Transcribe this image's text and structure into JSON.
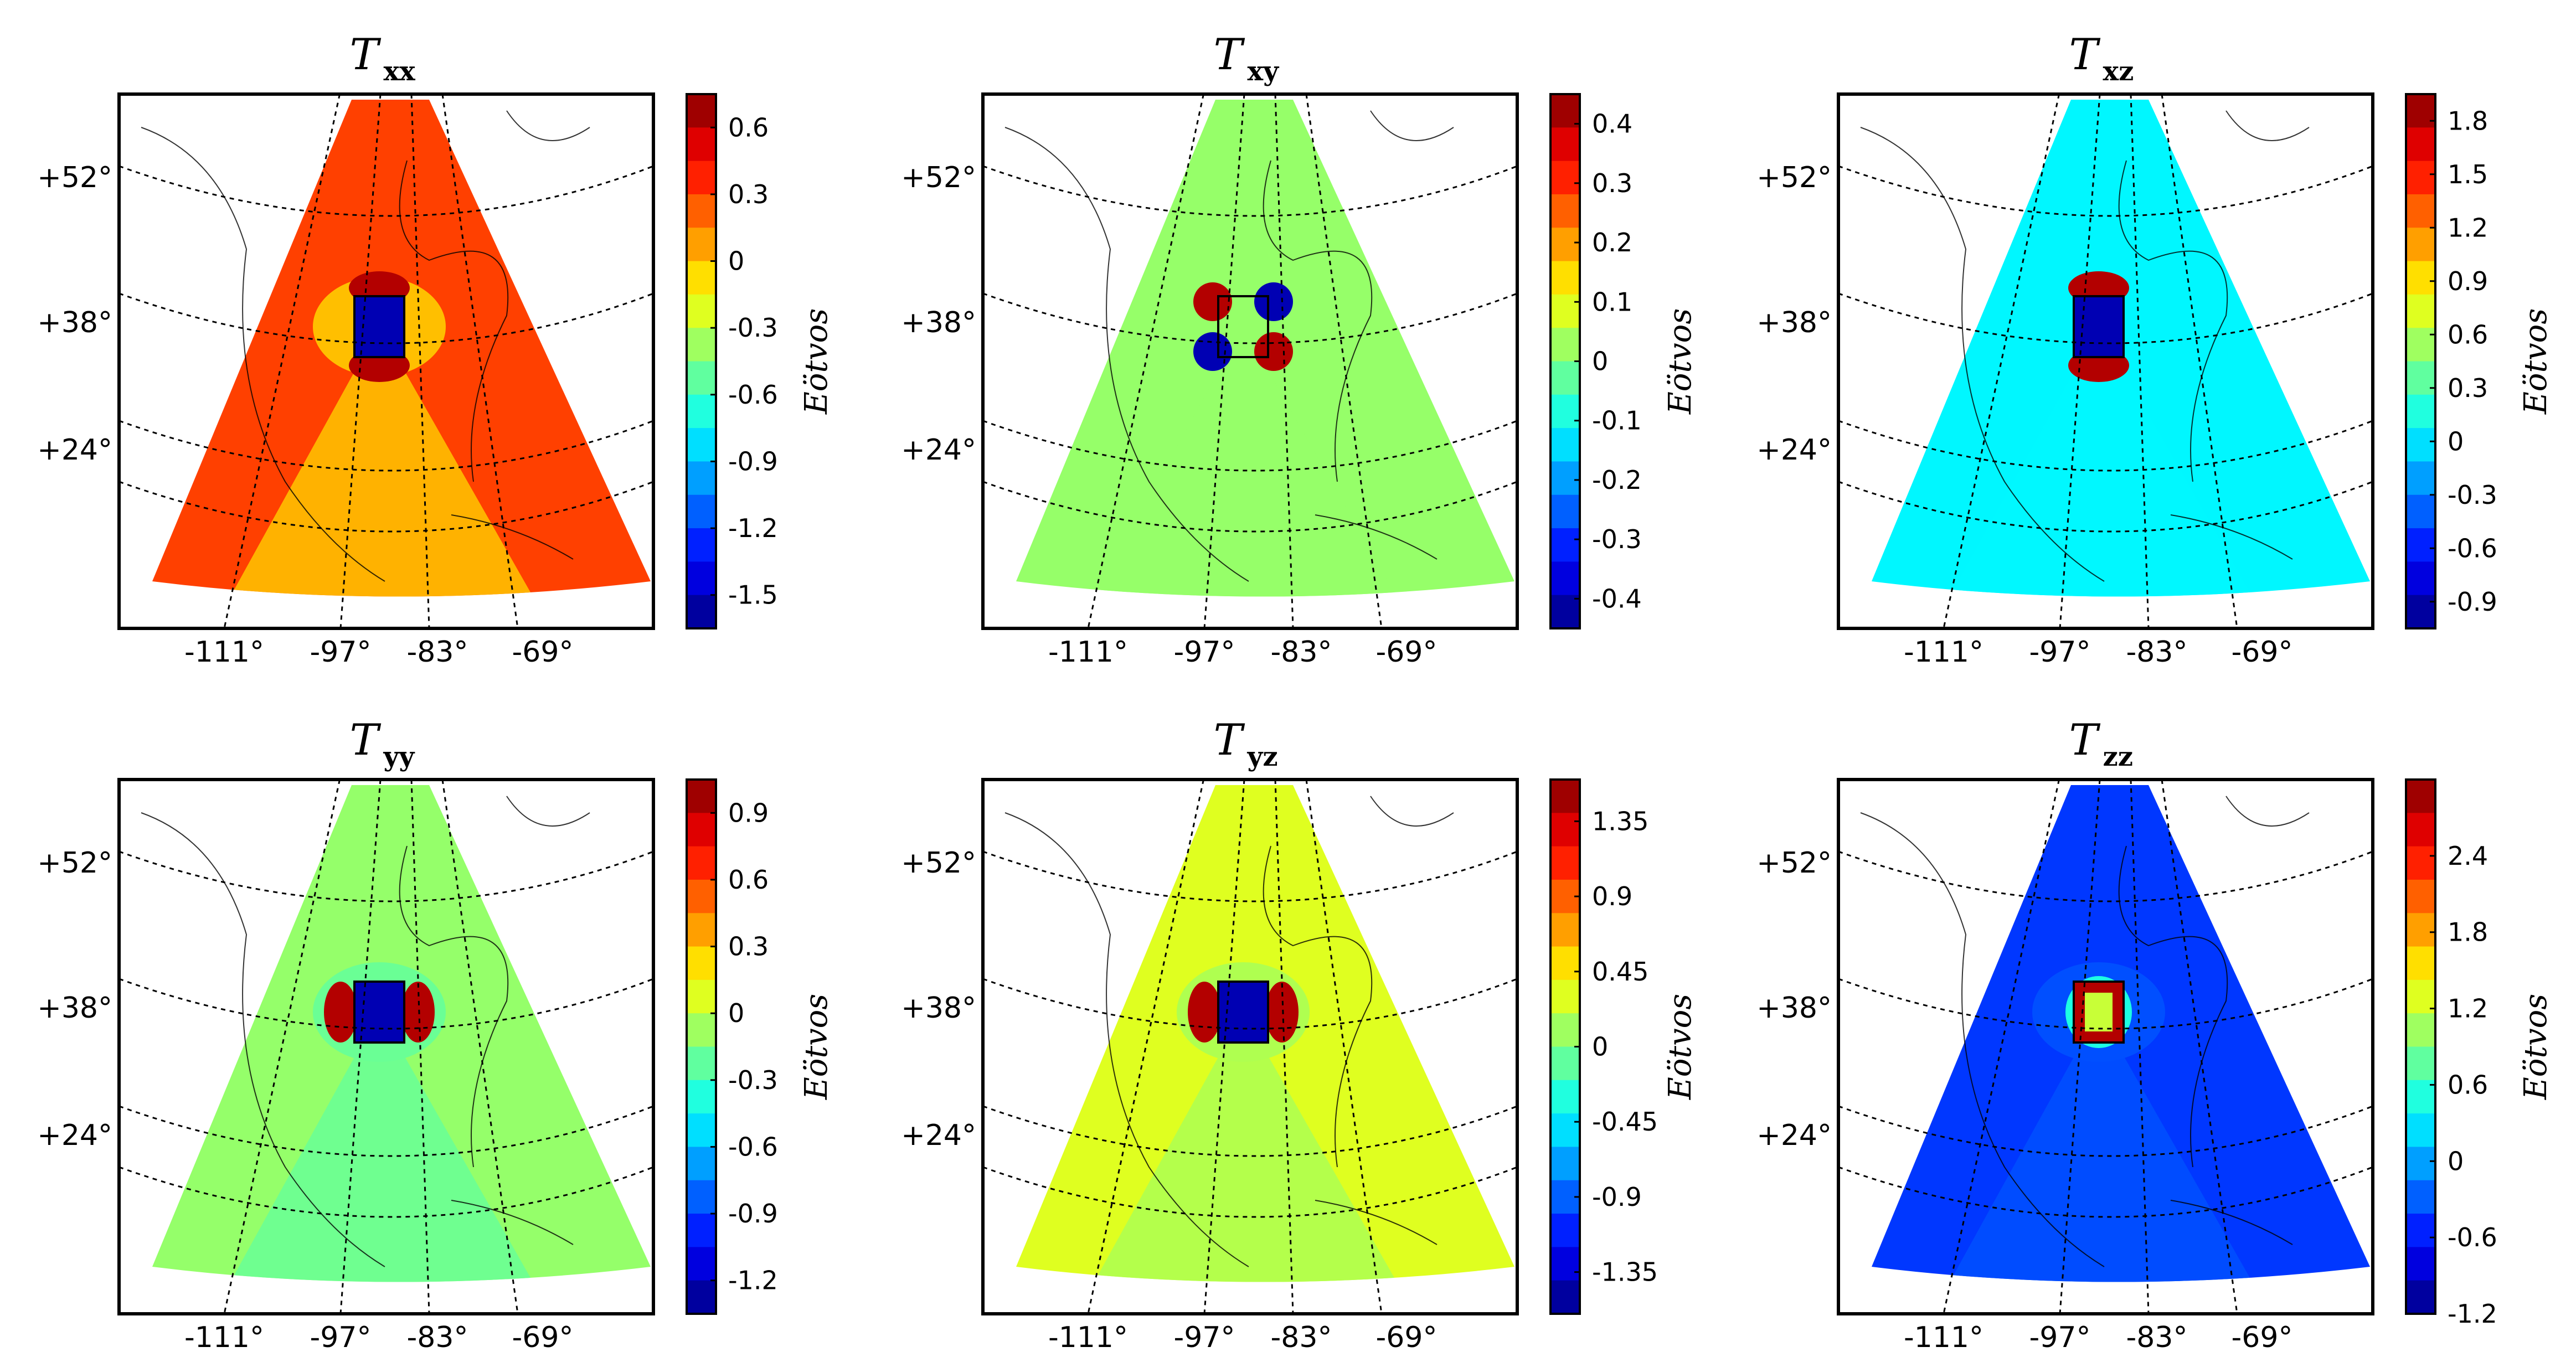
{
  "chart_data": [
    {
      "type": "heatmap",
      "title": "T",
      "title_sub": "xx",
      "colorbar_label": "Eötvos",
      "colorbar_ticks": [
        "0.6",
        "0.3",
        "0",
        "-0.3",
        "-0.6",
        "-0.9",
        "-1.2",
        "-1.5"
      ],
      "colorbar_range": [
        -1.65,
        0.75
      ],
      "lat_labels": [
        "+52°",
        "+38°",
        "+24°"
      ],
      "lon_labels": [
        "-111°",
        "-97°",
        "-83°",
        "-69°"
      ],
      "background_value": 0.3,
      "center_value": 0.0,
      "band_value": 0.1,
      "anomaly": "vertical"
    },
    {
      "type": "heatmap",
      "title": "T",
      "title_sub": "xy",
      "colorbar_label": "Eötvos",
      "colorbar_ticks": [
        "0.4",
        "0.3",
        "0.2",
        "0.1",
        "0",
        "-0.1",
        "-0.2",
        "-0.3",
        "-0.4"
      ],
      "colorbar_range": [
        -0.45,
        0.45
      ],
      "lat_labels": [
        "+52°",
        "+38°",
        "+24°"
      ],
      "lon_labels": [
        "-111°",
        "-97°",
        "-83°",
        "-69°"
      ],
      "background_value": 0.02,
      "center_value": 0.02,
      "band_value": 0.0,
      "anomaly": "quad"
    },
    {
      "type": "heatmap",
      "title": "T",
      "title_sub": "xz",
      "colorbar_label": "Eötvos",
      "colorbar_ticks": [
        "1.8",
        "1.5",
        "1.2",
        "0.9",
        "0.6",
        "0.3",
        "0",
        "-0.3",
        "-0.6",
        "-0.9"
      ],
      "colorbar_range": [
        -1.05,
        1.95
      ],
      "lat_labels": [
        "+52°",
        "+38°",
        "+24°"
      ],
      "lon_labels": [
        "-111°",
        "-97°",
        "-83°",
        "-69°"
      ],
      "background_value": 0.05,
      "center_value": 0.05,
      "band_value": -0.05,
      "anomaly": "vertical"
    },
    {
      "type": "heatmap",
      "title": "T",
      "title_sub": "yy",
      "colorbar_label": "Eötvos",
      "colorbar_ticks": [
        "0.9",
        "0.6",
        "0.3",
        "0",
        "-0.3",
        "-0.6",
        "-0.9",
        "-1.2"
      ],
      "colorbar_range": [
        -1.35,
        1.05
      ],
      "lat_labels": [
        "+52°",
        "+38°",
        "+24°"
      ],
      "lon_labels": [
        "-111°",
        "-97°",
        "-83°",
        "-69°"
      ],
      "background_value": -0.1,
      "center_value": -0.2,
      "band_value": 0.05,
      "anomaly": "horizontal"
    },
    {
      "type": "heatmap",
      "title": "T",
      "title_sub": "yz",
      "colorbar_label": "Eötvos",
      "colorbar_ticks": [
        "1.35",
        "0.9",
        "0.45",
        "0",
        "-0.45",
        "-0.9",
        "-1.35"
      ],
      "colorbar_range": [
        -1.6,
        1.6
      ],
      "lat_labels": [
        "+52°",
        "+38°",
        "+24°"
      ],
      "lon_labels": [
        "-111°",
        "-97°",
        "-83°",
        "-69°"
      ],
      "background_value": 0.3,
      "center_value": 0.15,
      "band_value": 0.15,
      "anomaly": "horizontal"
    },
    {
      "type": "heatmap",
      "title": "T",
      "title_sub": "zz",
      "colorbar_label": "Eötvos",
      "colorbar_ticks": [
        "2.4",
        "1.8",
        "1.2",
        "0.6",
        "0",
        "-0.6",
        "-1.2"
      ],
      "colorbar_range": [
        -1.2,
        3.0
      ],
      "lat_labels": [
        "+52°",
        "+38°",
        "+24°"
      ],
      "lon_labels": [
        "-111°",
        "-97°",
        "-83°",
        "-69°"
      ],
      "background_value": -0.45,
      "center_value": -0.35,
      "band_value": -0.4,
      "anomaly": "center"
    }
  ]
}
